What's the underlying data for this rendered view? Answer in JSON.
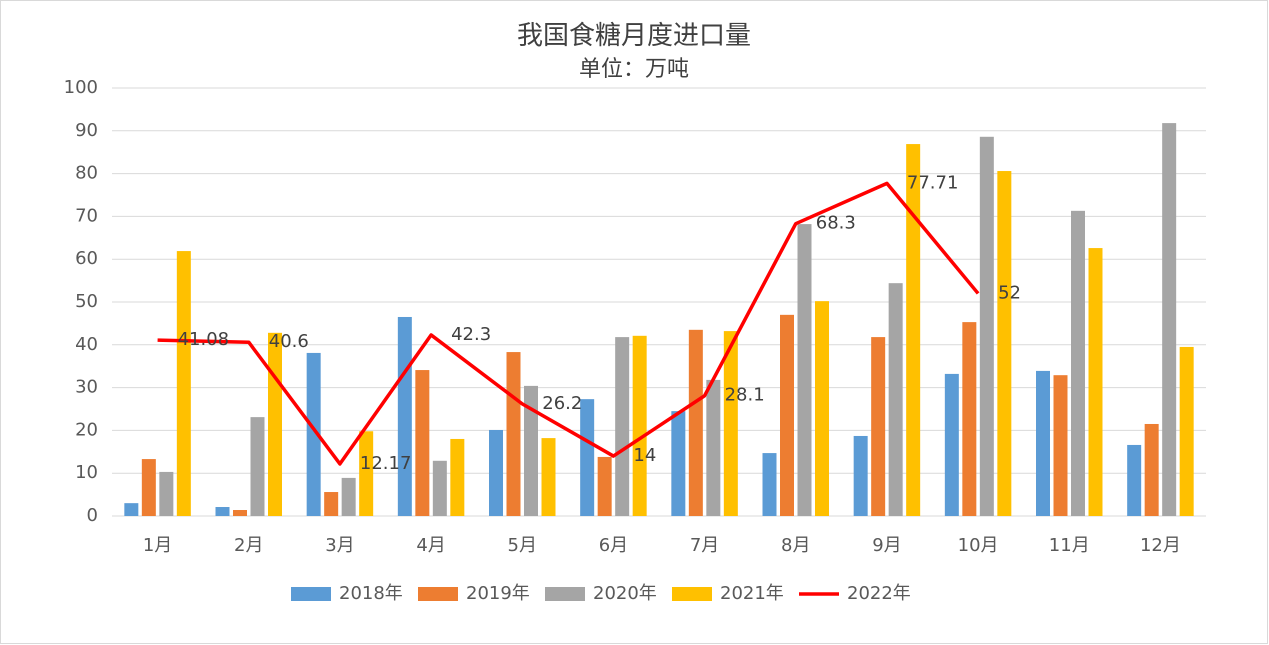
{
  "chart_data": {
    "type": "bar",
    "title": "我国食糖月度进口量",
    "subtitle": "单位：万吨",
    "categories": [
      "1月",
      "2月",
      "3月",
      "4月",
      "5月",
      "6月",
      "7月",
      "8月",
      "9月",
      "10月",
      "11月",
      "12月"
    ],
    "series": [
      {
        "name": "2018年",
        "type": "bar",
        "color": "#5b9bd5",
        "values": [
          3.0,
          2.1,
          38.1,
          46.5,
          20.1,
          27.3,
          24.5,
          14.7,
          18.7,
          33.2,
          33.9,
          16.6
        ]
      },
      {
        "name": "2019年",
        "type": "bar",
        "color": "#ed7d31",
        "values": [
          13.3,
          1.4,
          5.6,
          34.1,
          38.3,
          13.8,
          43.5,
          47.0,
          41.8,
          45.3,
          32.9,
          21.5
        ]
      },
      {
        "name": "2020年",
        "type": "bar",
        "color": "#a5a5a5",
        "values": [
          10.3,
          23.1,
          8.9,
          12.9,
          30.4,
          41.8,
          31.8,
          68.2,
          54.4,
          88.6,
          71.3,
          91.8
        ]
      },
      {
        "name": "2021年",
        "type": "bar",
        "color": "#ffc000",
        "values": [
          61.9,
          42.8,
          19.8,
          18.0,
          18.2,
          42.1,
          43.2,
          50.2,
          86.9,
          80.6,
          62.6,
          39.5
        ]
      },
      {
        "name": "2022年",
        "type": "line",
        "color": "#ff0000",
        "values": [
          41.08,
          40.6,
          12.17,
          42.3,
          26.2,
          14,
          28.1,
          68.3,
          77.71,
          52,
          null,
          null
        ]
      }
    ],
    "ylim": [
      0,
      100
    ],
    "yticks": [
      0,
      10,
      20,
      30,
      40,
      50,
      60,
      70,
      80,
      90,
      100
    ],
    "grid": true,
    "legend": "bottom"
  }
}
